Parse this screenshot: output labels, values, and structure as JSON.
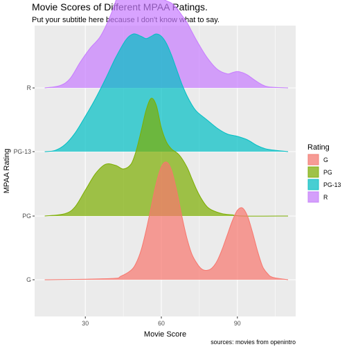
{
  "chart_data": {
    "type": "area",
    "subtype": "ridgeline-density",
    "title": "Movie Scores of Different MPAA Ratings.",
    "subtitle": "Put your subtitle here because I don't know what to say.",
    "xlabel": "Movie Score",
    "ylabel": "MPAA Rating",
    "caption": "sources: movies from openintro",
    "xlim": [
      10,
      113
    ],
    "x_ticks": [
      30,
      60,
      90
    ],
    "x_tick_labels": [
      "30",
      "60",
      "90"
    ],
    "categories": [
      "G",
      "PG",
      "PG-13",
      "R"
    ],
    "legend_title": "Rating",
    "legend_position": "right",
    "grid": true,
    "series": [
      {
        "name": "G",
        "color": "#F8766D",
        "x": [
          14,
          40,
          44,
          48,
          50,
          52,
          54,
          56,
          58,
          60,
          62,
          64,
          66,
          68,
          70,
          72,
          74,
          76,
          78,
          80,
          82,
          84,
          86,
          88,
          90,
          92,
          94,
          96,
          98,
          100,
          102,
          104,
          110
        ],
        "height": [
          0,
          0.01,
          0.03,
          0.08,
          0.14,
          0.25,
          0.42,
          0.62,
          0.82,
          0.96,
          1.0,
          0.93,
          0.76,
          0.55,
          0.36,
          0.22,
          0.14,
          0.09,
          0.08,
          0.1,
          0.16,
          0.26,
          0.38,
          0.5,
          0.59,
          0.61,
          0.54,
          0.4,
          0.24,
          0.11,
          0.05,
          0.02,
          0
        ]
      },
      {
        "name": "PG",
        "color": "#7CAE00",
        "x": [
          14,
          22,
          26,
          30,
          34,
          38,
          42,
          45,
          48,
          50,
          52,
          54,
          56,
          58,
          60,
          62,
          64,
          67,
          70,
          72,
          74,
          76,
          78,
          80,
          84,
          88,
          92,
          110
        ],
        "height": [
          0,
          0.02,
          0.08,
          0.22,
          0.36,
          0.44,
          0.43,
          0.4,
          0.44,
          0.55,
          0.72,
          0.9,
          1.0,
          0.94,
          0.75,
          0.63,
          0.57,
          0.52,
          0.42,
          0.32,
          0.22,
          0.14,
          0.08,
          0.05,
          0.02,
          0.01,
          0,
          0
        ]
      },
      {
        "name": "PG-13",
        "color": "#00BFC4",
        "x": [
          14,
          18,
          22,
          26,
          30,
          34,
          38,
          42,
          46,
          49,
          52,
          54,
          56,
          58,
          60,
          62,
          64,
          66,
          68,
          70,
          72,
          74,
          78,
          82,
          86,
          90,
          94,
          98,
          102,
          110
        ],
        "height": [
          0,
          0.01,
          0.06,
          0.16,
          0.3,
          0.45,
          0.62,
          0.8,
          0.95,
          1.0,
          0.98,
          0.96,
          0.98,
          1.0,
          0.98,
          0.92,
          0.82,
          0.7,
          0.58,
          0.48,
          0.4,
          0.34,
          0.27,
          0.2,
          0.15,
          0.13,
          0.1,
          0.05,
          0.02,
          0
        ]
      },
      {
        "name": "R",
        "color": "#C77CFF",
        "x": [
          14,
          20,
          24,
          28,
          32,
          36,
          40,
          44,
          46,
          48,
          50,
          52,
          54,
          56,
          58,
          60,
          62,
          64,
          66,
          68,
          70,
          72,
          74,
          78,
          82,
          86,
          88,
          90,
          92,
          94,
          98,
          102,
          110
        ],
        "height": [
          0,
          0.02,
          0.08,
          0.22,
          0.34,
          0.44,
          0.62,
          0.86,
          0.94,
          0.96,
          0.92,
          0.84,
          0.78,
          0.76,
          0.76,
          0.76,
          0.74,
          0.72,
          0.68,
          0.62,
          0.56,
          0.48,
          0.4,
          0.26,
          0.16,
          0.12,
          0.13,
          0.14,
          0.13,
          0.11,
          0.05,
          0.01,
          0
        ]
      }
    ]
  }
}
